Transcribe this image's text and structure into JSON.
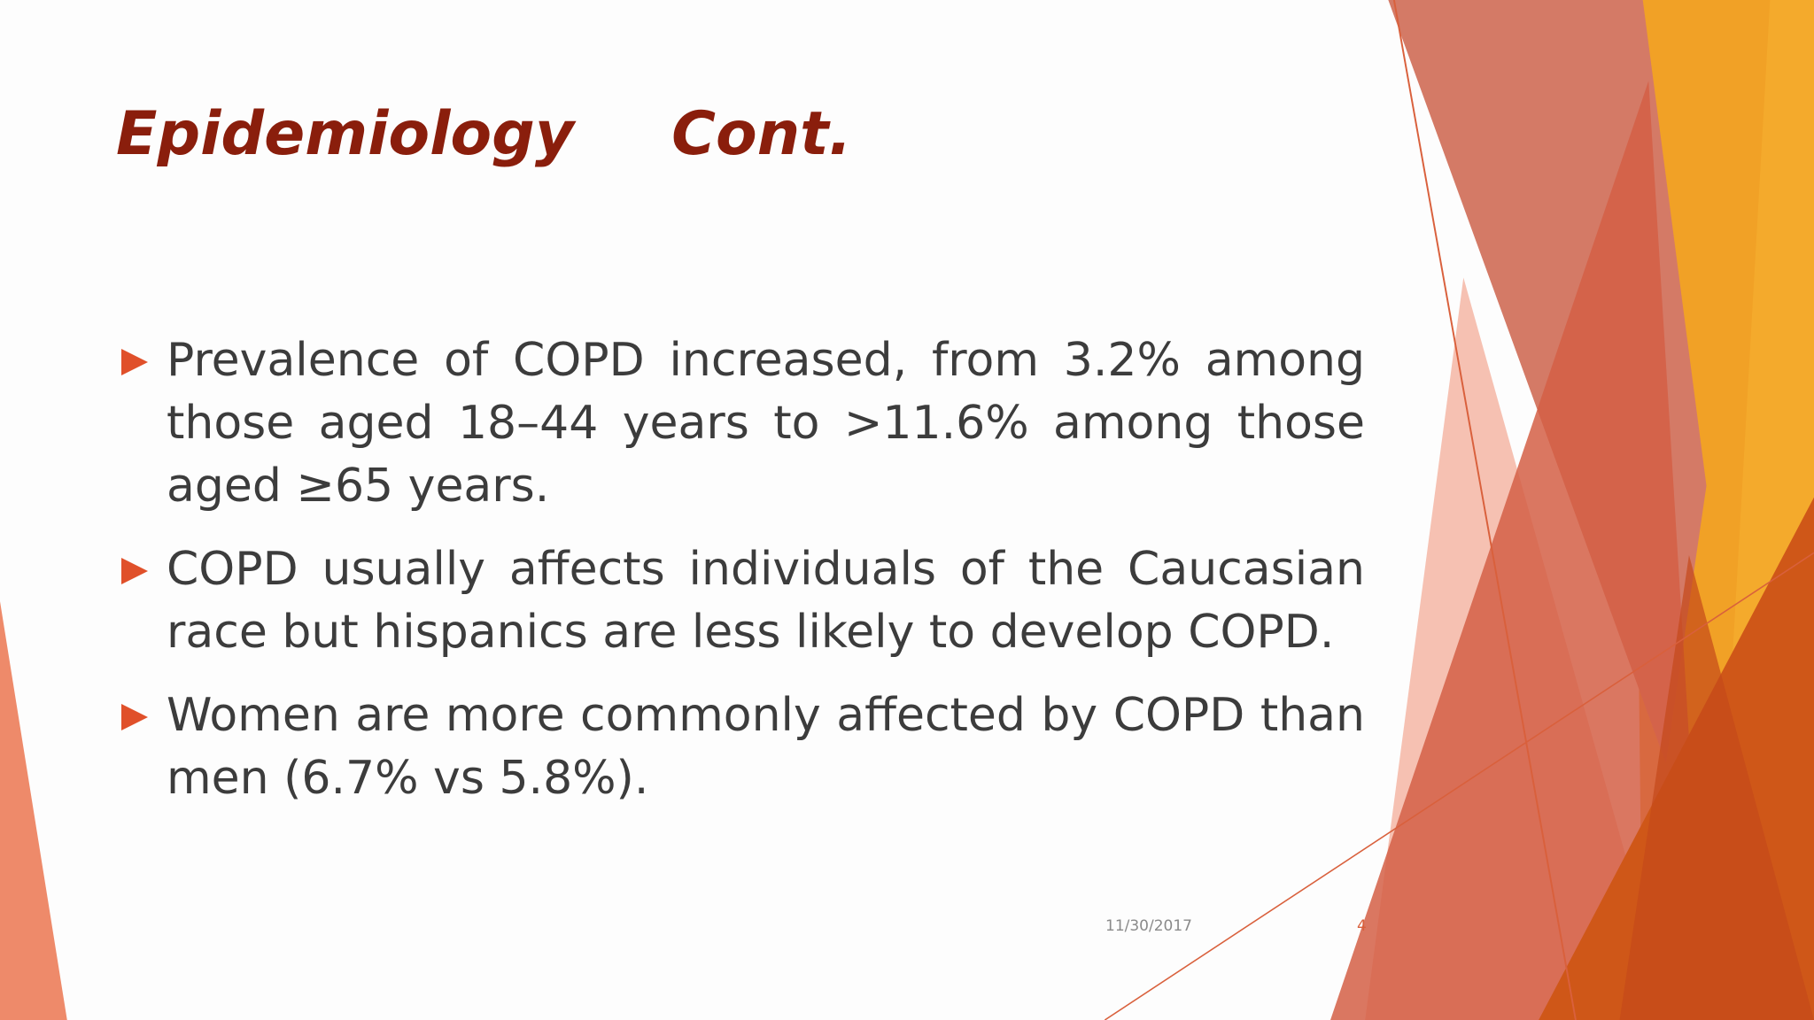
{
  "slide": {
    "title": {
      "main": "Epidemiology",
      "suffix": "Cont."
    },
    "bullets": [
      "Prevalence of COPD increased, from 3.2% among those aged 18–44 years to >11.6% among those aged ≥65 years.",
      "COPD usually affects individuals of the Caucasian race but hispanics are less likely to develop COPD.",
      "Women are more commonly affected by COPD than men (6.7% vs 5.8%)."
    ],
    "footer": {
      "date": "11/30/2017",
      "page_number": "4"
    }
  }
}
